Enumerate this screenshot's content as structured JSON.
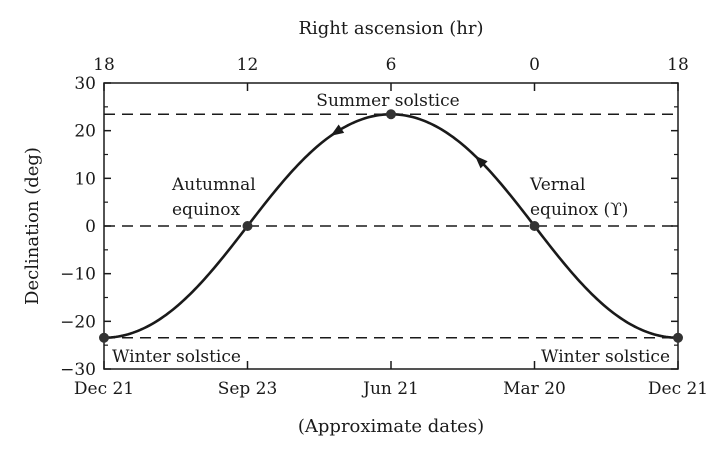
{
  "chart_data": {
    "type": "line",
    "title": "",
    "top_axis": {
      "label": "Right ascension (hr)",
      "ticks": [
        "18",
        "12",
        "6",
        "0",
        "18"
      ]
    },
    "bottom_axis": {
      "label": "(Approximate dates)",
      "ticks": [
        "Dec 21",
        "Sep 23",
        "Jun 21",
        "Mar 20",
        "Dec 21"
      ]
    },
    "y_axis": {
      "label": "Declination (deg)",
      "ticks": [
        30,
        20,
        10,
        0,
        -10,
        -20,
        -30
      ],
      "range": [
        -30,
        30
      ]
    },
    "x_range_ra_hours": [
      18,
      -6
    ],
    "grid": false,
    "series": [
      {
        "x_ra_hours": [
          18,
          15,
          12,
          9,
          6,
          3,
          0,
          -3,
          -6
        ],
        "y": [
          -23.44,
          -16.6,
          0,
          16.6,
          23.44,
          16.6,
          0,
          -16.6,
          -23.44
        ]
      }
    ],
    "reference_lines": [
      23.44,
      0,
      -23.44
    ],
    "points": [
      {
        "ra_hours": 18,
        "dec": -23.44,
        "label": "Winter solstice"
      },
      {
        "ra_hours": 12,
        "dec": 0,
        "label": "Autumnal equinox"
      },
      {
        "ra_hours": 6,
        "dec": 23.44,
        "label": "Summer solstice"
      },
      {
        "ra_hours": 0,
        "dec": 0,
        "label": "Vernal equinox (♈)"
      },
      {
        "ra_hours": -6,
        "dec": -23.44,
        "label": "Winter solstice"
      }
    ],
    "annotations": {
      "summer": "Summer solstice",
      "autumnal_line1": "Autumnal",
      "autumnal_line2": "equinox",
      "vernal_line1": "Vernal",
      "vernal_line2": "equinox (ϒ)",
      "winter_left": "Winter solstice",
      "winter_right": "Winter solstice"
    },
    "colors": {
      "line": "#1a1a1a",
      "background": "#ffffff"
    }
  }
}
